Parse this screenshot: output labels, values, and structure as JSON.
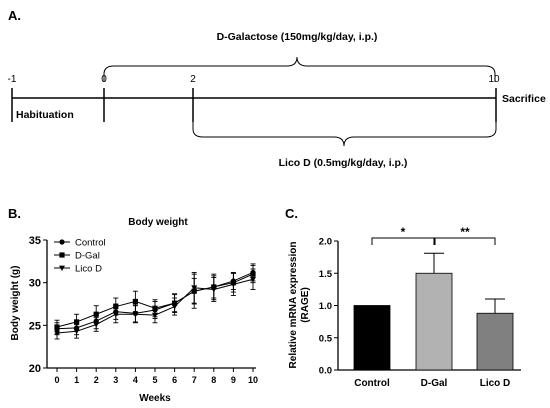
{
  "panels": {
    "a_label": "A.",
    "b_label": "B.",
    "c_label": "C."
  },
  "timeline": {
    "ticks": [
      "-1",
      "0",
      "2",
      "10"
    ],
    "top_treatment": "D-Galactose (150mg/kg/day, i.p.)",
    "bottom_treatment": "Lico D (0.5mg/kg/day, i.p.)",
    "start_label": "Habituation",
    "end_label": "Sacrifice"
  },
  "chart_data": [
    {
      "type": "line",
      "title": "Body weight",
      "xlabel": "Weeks",
      "ylabel": "Body weight (g)",
      "x": [
        0,
        1,
        2,
        3,
        4,
        5,
        6,
        7,
        8,
        9,
        10
      ],
      "xlim": [
        0,
        10
      ],
      "ylim": [
        20,
        35
      ],
      "yticks": [
        20,
        25,
        30,
        35
      ],
      "legend_position": "top-left",
      "series": [
        {
          "name": "Control",
          "marker": "circle",
          "values": [
            24.6,
            24.7,
            25.5,
            26.6,
            26.4,
            26.8,
            27.6,
            29.0,
            29.5,
            30.2,
            31.2
          ],
          "errors": [
            0.7,
            0.8,
            0.9,
            0.9,
            1.0,
            1.0,
            1.0,
            1.5,
            1.3,
            1.0,
            1.0
          ]
        },
        {
          "name": "D-Gal",
          "marker": "square",
          "values": [
            24.8,
            25.4,
            26.3,
            27.2,
            27.8,
            27.0,
            27.6,
            29.0,
            29.5,
            30.0,
            31.0
          ],
          "errors": [
            0.8,
            0.9,
            1.0,
            1.0,
            1.2,
            1.0,
            1.1,
            2.0,
            1.5,
            1.1,
            1.0
          ]
        },
        {
          "name": "Lico D",
          "marker": "triangle-down",
          "values": [
            24.1,
            24.3,
            25.1,
            26.3,
            26.3,
            26.2,
            27.2,
            29.4,
            29.2,
            29.8,
            30.4
          ],
          "errors": [
            0.7,
            0.8,
            0.8,
            1.0,
            1.0,
            0.9,
            1.0,
            1.8,
            1.4,
            1.3,
            1.2
          ]
        }
      ]
    },
    {
      "type": "bar",
      "ylabel": "Relative mRNA expression (RAGE)",
      "categories": [
        "Control",
        "D-Gal",
        "Lico D"
      ],
      "values": [
        1.0,
        1.5,
        0.88
      ],
      "errors": [
        0.0,
        0.31,
        0.22
      ],
      "ylim": [
        0.0,
        2.0
      ],
      "yticks": [
        "0.0",
        "0.5",
        "1.0",
        "1.5",
        "2.0"
      ],
      "bar_colors": [
        "#000000",
        "#b2b2b2",
        "#808080"
      ],
      "significance": [
        {
          "pair": [
            "Control",
            "D-Gal"
          ],
          "label": "*"
        },
        {
          "pair": [
            "D-Gal",
            "Lico D"
          ],
          "label": "**"
        }
      ]
    }
  ]
}
